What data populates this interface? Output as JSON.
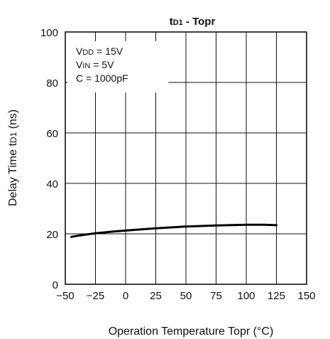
{
  "chart_data": {
    "type": "line",
    "title": "tD1 - Topr",
    "title_main": "t",
    "title_sub": "D1",
    "title_rest": " - Topr",
    "xlabel": "Operation Temperature Topr (°C)",
    "ylabel_main": "Delay Time t",
    "ylabel_sub": "D1",
    "ylabel_rest": " (ns)",
    "xlim": [
      -50,
      150
    ],
    "ylim": [
      0,
      100
    ],
    "xticks": [
      -50,
      -25,
      0,
      25,
      50,
      75,
      100,
      125,
      150
    ],
    "xtick_labels": [
      "−50",
      "−25",
      "0",
      "25",
      "50",
      "75",
      "100",
      "125",
      "150"
    ],
    "yticks": [
      0,
      20,
      40,
      60,
      80,
      100
    ],
    "ytick_labels": [
      "0",
      "20",
      "40",
      "60",
      "80",
      "100"
    ],
    "grid": true,
    "conditions": [
      {
        "main": "V",
        "sub": "DD",
        "rest": " = 15V"
      },
      {
        "main": "V",
        "sub": "IN",
        "rest": " = 5V"
      },
      {
        "main": "C = 1000pF",
        "sub": "",
        "rest": ""
      }
    ],
    "series": [
      {
        "x": [
          -45,
          -40,
          -30,
          -25,
          -10,
          0,
          25,
          50,
          75,
          100,
          115,
          125
        ],
        "y": [
          18.8,
          19.2,
          19.9,
          20.2,
          20.9,
          21.3,
          22.2,
          22.9,
          23.3,
          23.6,
          23.6,
          23.4
        ]
      }
    ]
  }
}
